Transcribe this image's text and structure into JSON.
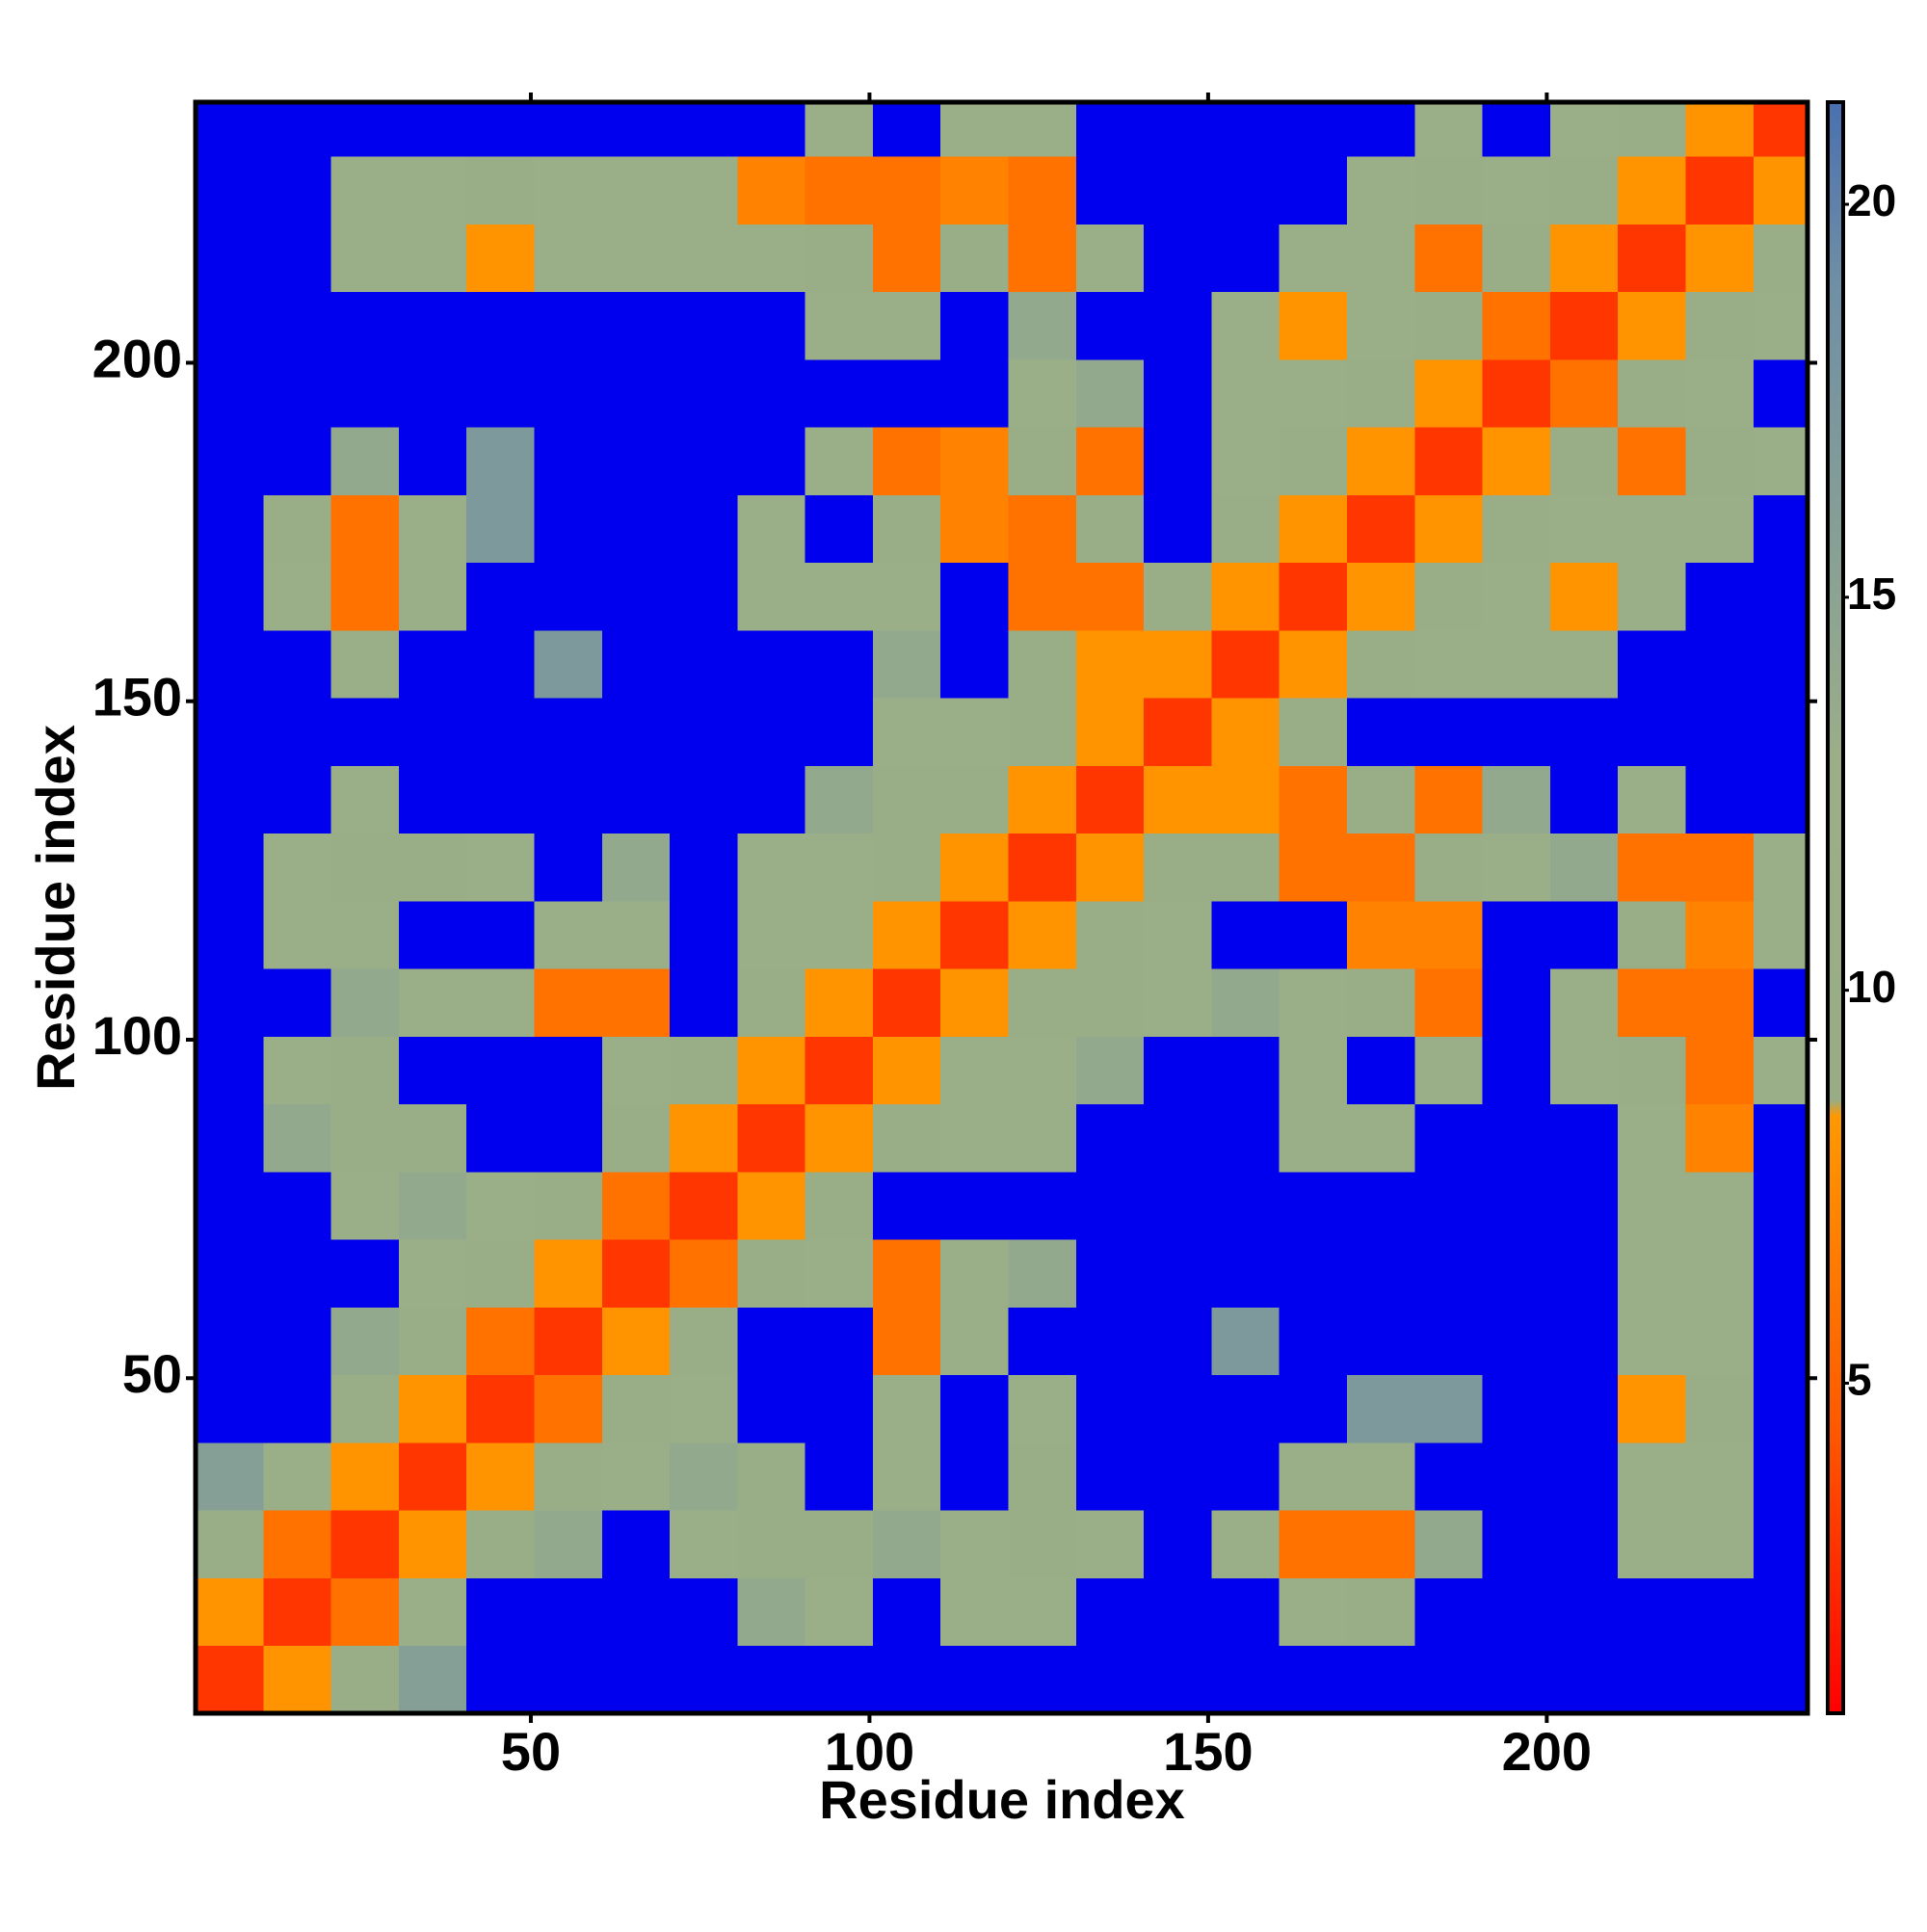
{
  "chart_data": {
    "type": "heatmap",
    "xlabel": "Residue index",
    "ylabel": "Residue index",
    "bins": [
      0.5,
      10.5,
      20.5,
      30.5,
      40.5,
      50.5,
      60.5,
      70.5,
      80.5,
      90.5,
      100.5,
      110.5,
      120.5,
      130.5,
      140.5,
      150.5,
      160.5,
      170.5,
      180.5,
      190.5,
      200.5,
      210.5,
      220.5,
      230.5,
      238.5
    ],
    "z": [
      [
        3,
        8,
        11,
        16,
        22,
        22,
        22,
        22,
        22,
        22,
        22,
        22,
        22,
        22,
        22,
        22,
        22,
        22,
        22,
        22,
        22,
        22,
        22,
        22
      ],
      [
        8,
        3,
        6,
        12,
        22,
        22,
        22,
        22,
        14,
        13,
        22,
        12,
        12,
        22,
        22,
        22,
        12,
        11,
        22,
        22,
        22,
        22,
        22,
        22
      ],
      [
        11,
        6,
        3,
        8,
        11,
        14,
        22,
        12,
        11,
        10,
        14,
        12,
        11,
        13,
        22,
        13,
        6,
        6,
        14,
        22,
        22,
        12,
        13,
        22
      ],
      [
        16,
        12,
        8,
        3,
        8,
        11,
        13,
        14,
        11,
        22,
        12,
        22,
        10,
        22,
        22,
        22,
        12,
        12,
        22,
        22,
        22,
        12,
        12,
        22
      ],
      [
        22,
        22,
        11,
        8,
        3,
        6,
        11,
        13,
        22,
        22,
        12,
        22,
        12,
        22,
        22,
        22,
        22,
        17,
        17,
        22,
        22,
        8,
        11,
        22
      ],
      [
        22,
        22,
        14,
        11,
        6,
        3,
        8,
        11,
        22,
        22,
        6,
        12,
        22,
        22,
        22,
        17,
        22,
        22,
        22,
        22,
        22,
        13,
        12,
        22
      ],
      [
        22,
        22,
        22,
        13,
        11,
        8,
        3,
        6,
        11,
        12,
        6,
        12,
        14,
        22,
        22,
        22,
        22,
        22,
        22,
        22,
        22,
        12,
        12,
        22
      ],
      [
        22,
        22,
        12,
        14,
        13,
        11,
        6,
        3,
        8,
        10,
        22,
        22,
        22,
        22,
        22,
        22,
        22,
        22,
        22,
        22,
        22,
        12,
        12,
        22
      ],
      [
        22,
        14,
        11,
        11,
        22,
        22,
        11,
        8,
        3,
        8,
        11,
        13,
        12,
        22,
        22,
        22,
        12,
        13,
        22,
        22,
        22,
        12,
        7,
        22
      ],
      [
        22,
        13,
        10,
        22,
        22,
        22,
        12,
        10,
        8,
        3,
        8,
        12,
        12,
        14,
        22,
        22,
        12,
        22,
        13,
        22,
        12,
        11,
        6,
        13
      ],
      [
        22,
        22,
        14,
        12,
        12,
        6,
        6,
        22,
        11,
        8,
        3,
        8,
        11,
        11,
        12,
        14,
        12,
        11,
        6,
        22,
        12,
        6,
        6,
        22
      ],
      [
        22,
        12,
        12,
        22,
        22,
        12,
        12,
        22,
        13,
        12,
        8,
        3,
        8,
        11,
        13,
        22,
        22,
        7,
        7,
        22,
        22,
        11,
        7,
        12
      ],
      [
        22,
        12,
        11,
        10,
        12,
        22,
        14,
        22,
        12,
        12,
        11,
        8,
        3,
        8,
        11,
        11,
        6,
        6,
        11,
        13,
        14,
        6,
        6,
        13
      ],
      [
        22,
        22,
        13,
        22,
        22,
        22,
        22,
        22,
        22,
        14,
        11,
        11,
        8,
        3,
        8,
        8,
        6,
        11,
        6,
        14,
        22,
        12,
        22,
        22
      ],
      [
        22,
        22,
        22,
        22,
        22,
        22,
        22,
        22,
        22,
        22,
        12,
        13,
        11,
        8,
        3,
        8,
        11,
        22,
        22,
        22,
        22,
        22,
        22,
        22
      ],
      [
        22,
        22,
        13,
        22,
        22,
        17,
        22,
        22,
        22,
        22,
        14,
        22,
        11,
        8,
        8,
        3,
        8,
        11,
        12,
        13,
        13,
        22,
        22,
        22
      ],
      [
        22,
        12,
        6,
        12,
        22,
        22,
        22,
        22,
        12,
        12,
        12,
        22,
        6,
        6,
        11,
        8,
        3,
        8,
        11,
        12,
        8,
        12,
        22,
        22
      ],
      [
        22,
        11,
        6,
        12,
        17,
        22,
        22,
        22,
        13,
        22,
        11,
        7,
        6,
        11,
        22,
        11,
        8,
        3,
        8,
        11,
        12,
        12,
        13,
        22
      ],
      [
        22,
        22,
        14,
        22,
        17,
        22,
        22,
        22,
        22,
        13,
        6,
        7,
        11,
        6,
        22,
        12,
        11,
        8,
        3,
        8,
        11,
        6,
        11,
        13
      ],
      [
        22,
        22,
        22,
        22,
        22,
        22,
        22,
        22,
        22,
        22,
        22,
        22,
        13,
        14,
        22,
        13,
        12,
        11,
        8,
        3,
        6,
        11,
        12,
        22
      ],
      [
        22,
        22,
        22,
        22,
        22,
        22,
        22,
        22,
        22,
        12,
        12,
        22,
        14,
        22,
        22,
        13,
        8,
        12,
        11,
        6,
        3,
        8,
        11,
        12
      ],
      [
        22,
        22,
        12,
        12,
        8,
        13,
        12,
        12,
        12,
        11,
        6,
        11,
        6,
        12,
        22,
        22,
        12,
        12,
        6,
        11,
        8,
        3,
        8,
        11
      ],
      [
        22,
        22,
        13,
        12,
        11,
        12,
        12,
        12,
        7,
        6,
        6,
        7,
        6,
        22,
        22,
        22,
        22,
        13,
        11,
        12,
        11,
        8,
        3,
        8
      ],
      [
        22,
        22,
        22,
        22,
        22,
        22,
        22,
        22,
        22,
        13,
        22,
        12,
        13,
        22,
        22,
        22,
        22,
        22,
        13,
        22,
        12,
        11,
        8,
        3
      ]
    ],
    "xlim": [
      0.5,
      238.5
    ],
    "ylim": [
      0.5,
      238.5
    ],
    "xticks": [
      50,
      100,
      150,
      200
    ],
    "yticks": [
      50,
      100,
      150,
      200
    ],
    "zlim": [
      0.8,
      21.3
    ],
    "zticks": [
      5,
      10,
      15,
      20
    ],
    "colorscale": [
      [
        0.8,
        "#ff0000"
      ],
      [
        4.5,
        "#ff5a00"
      ],
      [
        8.4,
        "#ff9900"
      ],
      [
        8.6,
        "#98ad86"
      ],
      [
        13,
        "#9aae88"
      ],
      [
        19,
        "#6f8fa5"
      ],
      [
        21.3,
        "#4a70b0"
      ]
    ],
    "over_color": "#0000ee"
  }
}
